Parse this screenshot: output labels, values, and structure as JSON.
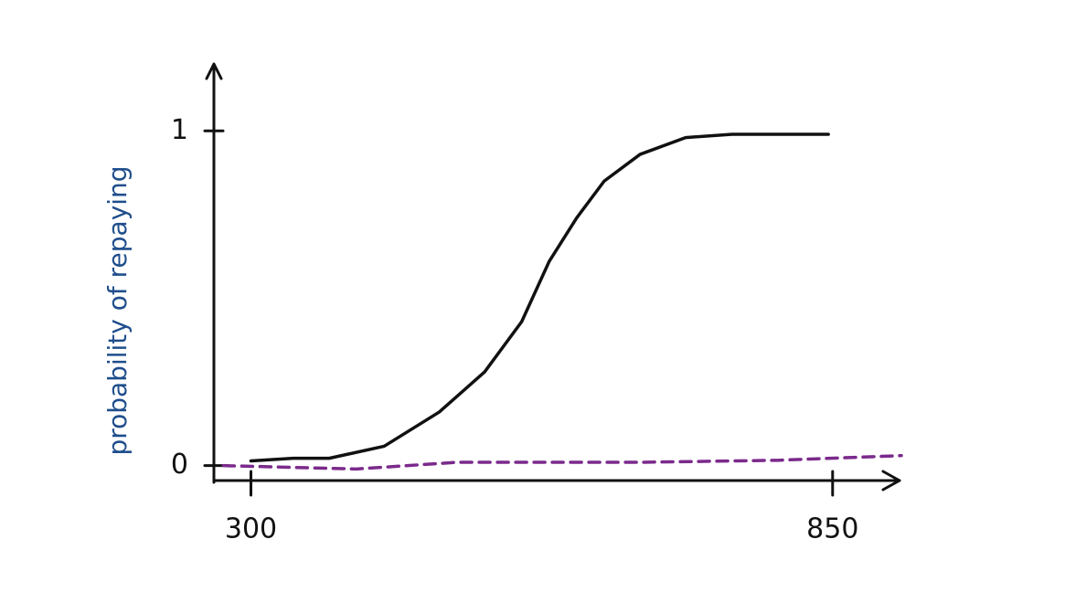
{
  "chart_data": {
    "type": "line",
    "ylabel": "probability of repaying",
    "xlim": [
      265,
      915
    ],
    "ylim": [
      -0.05,
      1.2
    ],
    "xticks": [
      300,
      850
    ],
    "yticks": [
      0,
      1
    ],
    "series": [
      {
        "color": "#111111",
        "dashed": false,
        "x": [
          300,
          340,
          374,
          426,
          478,
          521,
          556,
          582,
          608,
          634,
          668,
          711,
          755,
          846
        ],
        "values": [
          0.014,
          0.022,
          0.022,
          0.058,
          0.16,
          0.28,
          0.43,
          0.61,
          0.74,
          0.85,
          0.93,
          0.98,
          0.99,
          0.99
        ]
      },
      {
        "color": "#7b2a8c",
        "dashed": true,
        "x": [
          274,
          400,
          495,
          668,
          798,
          915
        ],
        "values": [
          0,
          -0.01,
          0.01,
          0.01,
          0.016,
          0.03
        ]
      }
    ]
  }
}
